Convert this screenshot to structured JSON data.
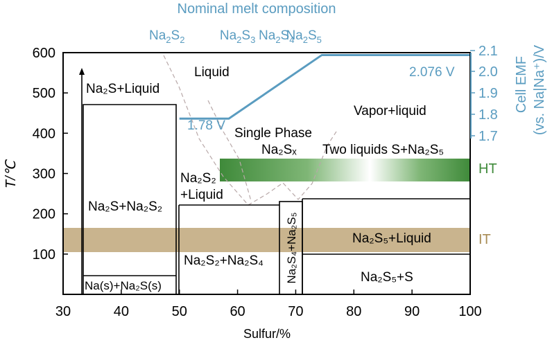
{
  "chart_data": {
    "type": "phase-diagram",
    "xlabel": "Sulfur/%",
    "ylabel": "T/℃",
    "right_ylabel_line1": "Cell EMF",
    "right_ylabel_line2": "(vs. Na|Na⁺)/V",
    "top_title": "Nominal melt composition",
    "xlim": [
      30,
      100
    ],
    "ylim": [
      0,
      600
    ],
    "right_ylim": [
      1.6,
      2.1
    ],
    "x_ticks": [
      30,
      40,
      50,
      60,
      70,
      80,
      90,
      100
    ],
    "y_ticks": [
      100,
      200,
      300,
      400,
      500,
      600
    ],
    "right_ticks": [
      "2.1",
      "2.0",
      "1.9",
      "1.8",
      "1.7"
    ],
    "compositions": [
      {
        "base": "Na",
        "sub1": "2",
        "mid": "S",
        "sub2": "2",
        "x": 50
      },
      {
        "base": "Na",
        "sub1": "2",
        "mid": "S",
        "sub2": "3",
        "x": 60
      },
      {
        "base": "Na",
        "sub1": "2",
        "mid": "S",
        "sub2": "4",
        "x": 66.7
      },
      {
        "base": "Na",
        "sub1": "2",
        "mid": "S",
        "sub2": "5",
        "x": 71.4
      }
    ],
    "emf_curve": {
      "x": [
        50,
        58.5,
        74.5,
        100
      ],
      "v": [
        1.78,
        1.78,
        2.076,
        2.076
      ],
      "labels": [
        "1.78 V",
        "2.076 V"
      ]
    },
    "bands": [
      {
        "name": "HT",
        "x": [
          57,
          100
        ],
        "y": [
          295,
          350
        ]
      },
      {
        "name": "IT",
        "x": [
          30,
          100
        ],
        "y": [
          125,
          182
        ]
      }
    ],
    "regions": [
      "Liquid",
      "Vapor+liquid",
      "Single Phase",
      "Two liquids S+Na₂S₅",
      "Na₂S+Liquid",
      "Na₂S+Na₂S₂",
      "Na₂S₂",
      "+Liquid",
      "Na₂S₅+Liquid",
      "Na₂S₂+Na₂S₄",
      "Na₂S₅+S",
      "Na(s)+Na₂S(s)",
      "Na₂S₄+Na₂S₅",
      "Na₂Sₓ"
    ],
    "colors": {
      "emf": "#5a9cc0",
      "ht": "#3f8a3a",
      "it": "#a88c55",
      "axis": "#000000",
      "dashed": "#b8a8a8"
    }
  }
}
